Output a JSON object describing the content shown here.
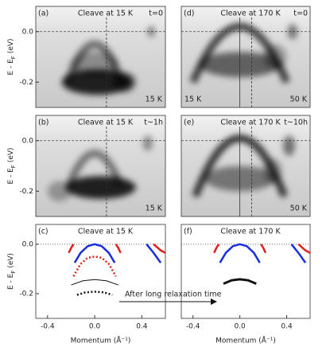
{
  "chart_data": [
    {
      "type": "image",
      "label": "(a)",
      "title": "Cleave at 15 K",
      "time": "t=0",
      "temp_right": "15 K",
      "xlim": [
        -0.5,
        0.6
      ],
      "ylim": [
        -0.3,
        0.1
      ],
      "yticks": [
        {
          "value": 0,
          "label": "0.0"
        },
        {
          "value": -0.2,
          "label": "-0.2"
        }
      ],
      "ylabel": [
        "E - E",
        "F",
        "(eV)"
      ],
      "hline": 0,
      "vlines": [
        {
          "value": 0.1,
          "linestyle": "dashed"
        }
      ]
    },
    {
      "type": "image",
      "label": "(b)",
      "title": "Cleave at 15 K",
      "time": "t~1h",
      "temp_right": "15 K",
      "xlim": [
        -0.5,
        0.6
      ],
      "ylim": [
        -0.3,
        0.1
      ],
      "yticks": [
        {
          "value": 0,
          "label": "0.0"
        },
        {
          "value": -0.2,
          "label": "-0.2"
        }
      ],
      "ylabel": [
        "E - E",
        "F",
        "(eV)"
      ],
      "hline": 0,
      "vlines": [
        {
          "value": 0.1,
          "linestyle": "dashed"
        }
      ]
    },
    {
      "type": "line",
      "label": "(c)",
      "title": "Cleave at 15 K",
      "xlim": [
        -0.5,
        0.6
      ],
      "ylim": [
        -0.3,
        0.08
      ],
      "yticks": [
        {
          "value": 0,
          "label": "0.0"
        },
        {
          "value": -0.2,
          "label": "-0.2"
        }
      ],
      "xticks": [
        {
          "value": -0.4,
          "label": "-0.4"
        },
        {
          "value": 0,
          "label": "0.0"
        },
        {
          "value": 0.4,
          "label": "0.4"
        }
      ],
      "ylabel": [
        "E - E",
        "F",
        "(eV)"
      ],
      "xlabel": "Momentum (Å⁻¹)",
      "hline": 0,
      "annotation": "After long relaxation time",
      "series": [
        {
          "color": "#e0201a",
          "width": 2.5,
          "linestyle": "solid",
          "x": [
            -0.22,
            -0.2,
            -0.18
          ],
          "values": [
            -0.035,
            -0.015,
            0.0
          ]
        },
        {
          "color": "#e0201a",
          "width": 2.5,
          "linestyle": "solid",
          "x": [
            0.18,
            0.2,
            0.22
          ],
          "values": [
            0.0,
            -0.015,
            -0.035
          ]
        },
        {
          "color": "#1a2ee0",
          "width": 2.5,
          "linestyle": "solid",
          "x": [
            -0.17,
            -0.12,
            -0.06,
            0,
            0.06,
            0.12,
            0.17
          ],
          "values": [
            -0.075,
            -0.035,
            -0.008,
            0.0,
            -0.008,
            -0.035,
            -0.075
          ]
        },
        {
          "color": "#e0201a",
          "width": 2.5,
          "linestyle": "dotted",
          "x": [
            -0.18,
            -0.12,
            -0.06,
            0,
            0.06,
            0.12,
            0.18
          ],
          "values": [
            -0.13,
            -0.08,
            -0.055,
            -0.05,
            -0.055,
            -0.08,
            -0.13
          ]
        },
        {
          "color": "#111111",
          "width": 1,
          "linestyle": "solid",
          "x": [
            -0.2,
            -0.1,
            0,
            0.1,
            0.2
          ],
          "values": [
            -0.165,
            -0.148,
            -0.143,
            -0.148,
            -0.165
          ]
        },
        {
          "color": "#111111",
          "width": 2.5,
          "linestyle": "dotted",
          "x": [
            -0.15,
            -0.08,
            0,
            0.08,
            0.15
          ],
          "values": [
            -0.205,
            -0.195,
            -0.192,
            -0.195,
            -0.205
          ]
        },
        {
          "color": "#1a2ee0",
          "width": 2.5,
          "linestyle": "solid",
          "x": [
            0.44,
            0.5,
            0.56
          ],
          "values": [
            0.0,
            -0.035,
            -0.075
          ]
        },
        {
          "color": "#e0201a",
          "width": 2.5,
          "linestyle": "solid",
          "x": [
            0.5,
            0.56,
            0.6
          ],
          "values": [
            0.0,
            -0.025,
            -0.035
          ]
        }
      ]
    },
    {
      "type": "image",
      "label": "(d)",
      "title": "Cleave at 170 K",
      "time": "t=0",
      "temp_left": "15 K",
      "temp_right": "50 K",
      "xlim": [
        -0.5,
        0.6
      ],
      "ylim": [
        -0.3,
        0.1
      ],
      "hline": 0,
      "vlines": [
        {
          "value": 0,
          "linestyle": "solid"
        },
        {
          "value": 0.1,
          "linestyle": "dashed"
        }
      ]
    },
    {
      "type": "image",
      "label": "(e)",
      "title": "Cleave at 170 K",
      "time": "t~10h",
      "temp_right": "50 K",
      "xlim": [
        -0.5,
        0.6
      ],
      "ylim": [
        -0.3,
        0.1
      ],
      "hline": 0,
      "vlines": [
        {
          "value": 0,
          "linestyle": "solid"
        },
        {
          "value": 0.1,
          "linestyle": "dashed"
        }
      ]
    },
    {
      "type": "line",
      "label": "(f)",
      "title": "Cleave at 170 K",
      "xlim": [
        -0.5,
        0.6
      ],
      "ylim": [
        -0.3,
        0.08
      ],
      "xticks": [
        {
          "value": -0.4,
          "label": "-0.4"
        },
        {
          "value": 0,
          "label": "0.0"
        },
        {
          "value": 0.4,
          "label": "0.4"
        }
      ],
      "xlabel": "Momentum (Å⁻¹)",
      "hline": 0,
      "series": [
        {
          "color": "#e0201a",
          "width": 2.5,
          "linestyle": "solid",
          "x": [
            -0.22,
            -0.2,
            -0.18
          ],
          "values": [
            -0.035,
            -0.015,
            0.0
          ]
        },
        {
          "color": "#e0201a",
          "width": 2.5,
          "linestyle": "solid",
          "x": [
            0.18,
            0.2,
            0.22
          ],
          "values": [
            0.0,
            -0.015,
            -0.035
          ]
        },
        {
          "color": "#1a2ee0",
          "width": 2.5,
          "linestyle": "solid",
          "x": [
            -0.17,
            -0.12,
            -0.06,
            0,
            0.06,
            0.12,
            0.17
          ],
          "values": [
            -0.075,
            -0.035,
            -0.008,
            0.0,
            -0.008,
            -0.035,
            -0.075
          ]
        },
        {
          "color": "#111111",
          "width": 3,
          "linestyle": "solid",
          "x": [
            -0.14,
            -0.07,
            0,
            0.07,
            0.14
          ],
          "values": [
            -0.16,
            -0.146,
            -0.142,
            -0.146,
            -0.16
          ]
        },
        {
          "color": "#1a2ee0",
          "width": 2.5,
          "linestyle": "solid",
          "x": [
            0.44,
            0.5,
            0.56
          ],
          "values": [
            0.0,
            -0.035,
            -0.075
          ]
        },
        {
          "color": "#e0201a",
          "width": 2.5,
          "linestyle": "solid",
          "x": [
            0.5,
            0.56,
            0.6
          ],
          "values": [
            0.0,
            -0.025,
            -0.035
          ]
        }
      ]
    }
  ]
}
